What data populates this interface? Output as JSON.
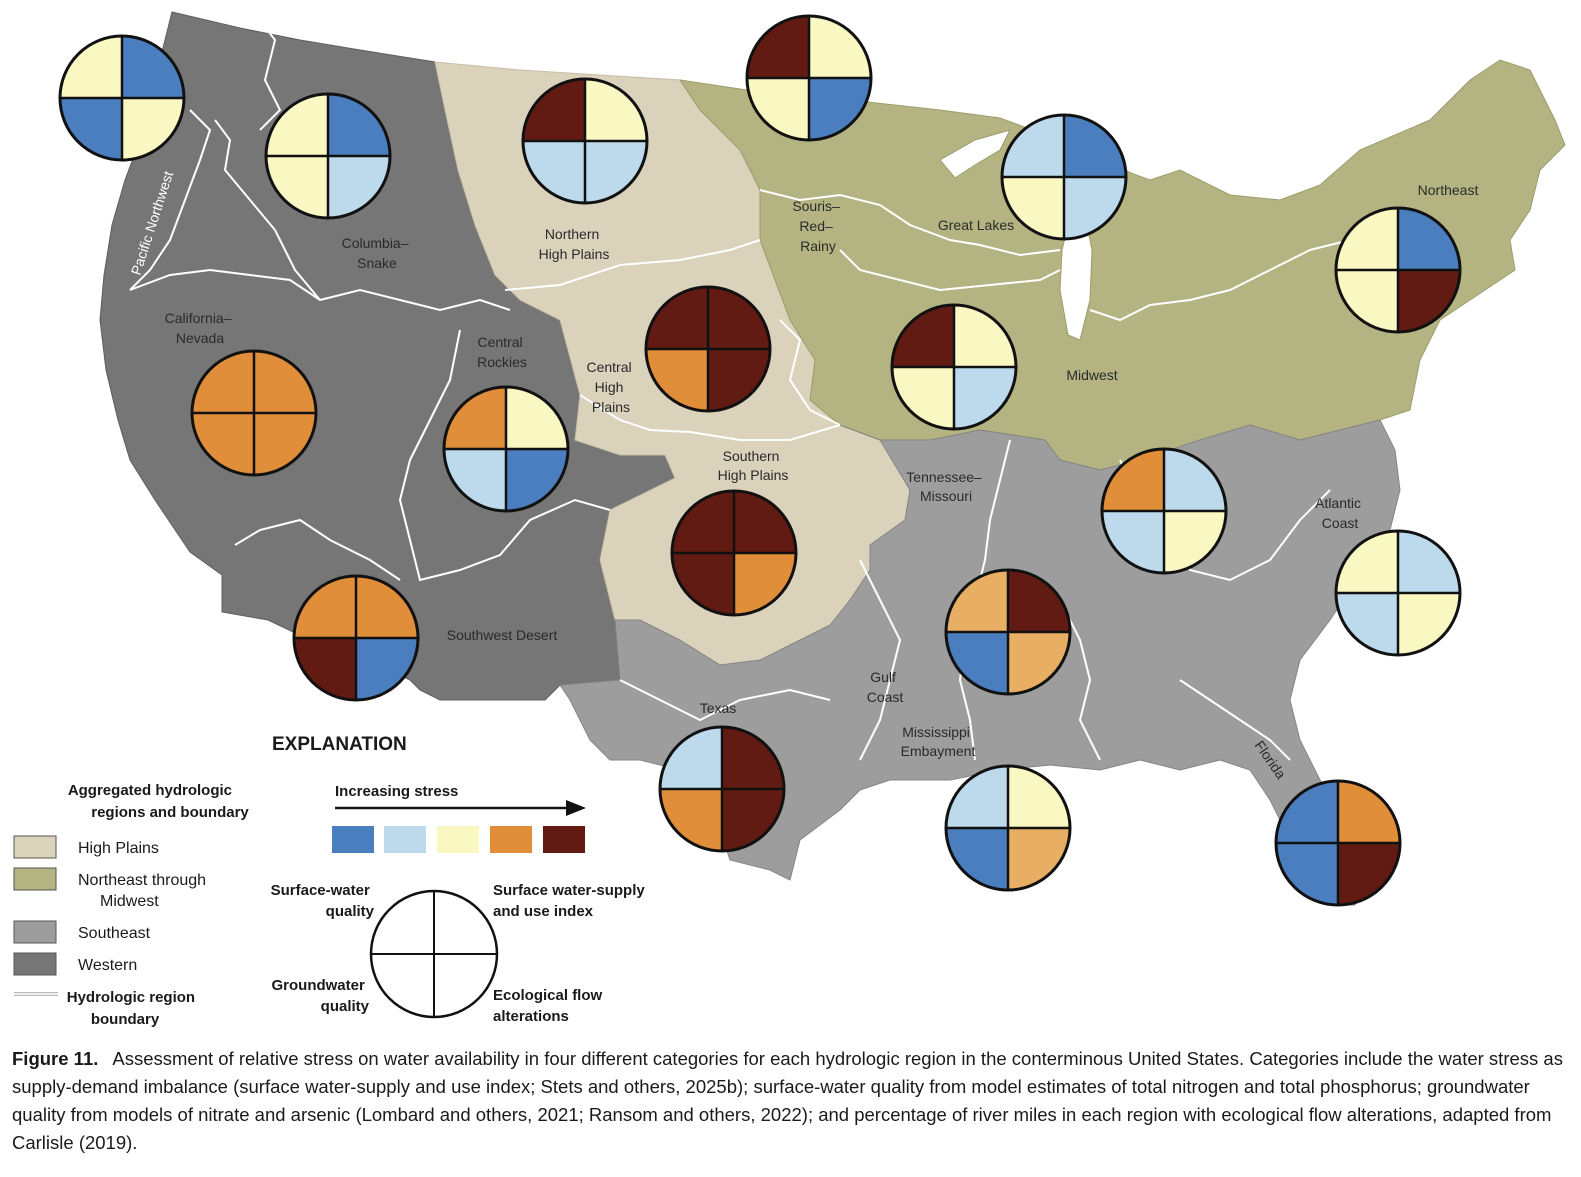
{
  "colors": {
    "stress_1": "#4a7ebe",
    "stress_2": "#bcdaec",
    "stress_3": "#f9f7c2",
    "stress_4": "#e08e3a",
    "stress_5": "#611b13",
    "stress_4_light": "#e8ae64",
    "high_plains": "#dbd2bc",
    "northeast_midwest": "#b3b482",
    "southeast": "#9d9d9d",
    "western": "#767676"
  },
  "region_labels": [
    {
      "id": "pacific-northwest",
      "text": "Pacific Northwest"
    },
    {
      "id": "columbia-snake",
      "lines": [
        "Columbia–",
        "Snake"
      ]
    },
    {
      "id": "california-nevada",
      "lines": [
        "California–",
        "Nevada"
      ]
    },
    {
      "id": "central-rockies",
      "lines": [
        "Central",
        "Rockies"
      ]
    },
    {
      "id": "southwest-desert",
      "lines": [
        "Southwest Desert"
      ]
    },
    {
      "id": "northern-high-plains",
      "lines": [
        "Northern",
        "High Plains"
      ]
    },
    {
      "id": "central-high-plains",
      "lines": [
        "Central",
        "High",
        "Plains"
      ]
    },
    {
      "id": "southern-high-plains",
      "lines": [
        "Southern",
        "High Plains"
      ]
    },
    {
      "id": "texas",
      "lines": [
        "Texas"
      ]
    },
    {
      "id": "souris-red-rainy",
      "lines": [
        "Souris–",
        "Red–",
        "Rainy"
      ]
    },
    {
      "id": "great-lakes",
      "lines": [
        "Great Lakes"
      ]
    },
    {
      "id": "midwest",
      "lines": [
        "Midwest"
      ]
    },
    {
      "id": "northeast",
      "lines": [
        "Northeast"
      ]
    },
    {
      "id": "tennessee-missouri",
      "lines": [
        "Tennessee–",
        "Missouri"
      ]
    },
    {
      "id": "gulf-coast",
      "lines": [
        "Gulf",
        "Coast"
      ]
    },
    {
      "id": "mississippi-embayment",
      "lines": [
        "Mississippi",
        "Embayment"
      ]
    },
    {
      "id": "atlantic-coast",
      "lines": [
        "Atlantic",
        "Coast"
      ]
    },
    {
      "id": "florida",
      "text": "Florida"
    }
  ],
  "pies": [
    {
      "region": "pacific-northwest",
      "tl": 3,
      "tr": 1,
      "bl": 1,
      "br": 3
    },
    {
      "region": "columbia-snake",
      "tl": 3,
      "tr": 1,
      "bl": 3,
      "br": 2
    },
    {
      "region": "california-nevada",
      "tl": 4,
      "tr": 4,
      "bl": 4,
      "br": 4
    },
    {
      "region": "central-rockies",
      "tl": 4,
      "tr": 3,
      "bl": 2,
      "br": 1
    },
    {
      "region": "southwest-desert",
      "tl": 4,
      "tr": 4,
      "bl": 5,
      "br": 1
    },
    {
      "region": "northern-high-plains",
      "tl": 5,
      "tr": 3,
      "bl": 2,
      "br": 2
    },
    {
      "region": "souris-red-rainy",
      "tl": 5,
      "tr": 3,
      "bl": 3,
      "br": 1
    },
    {
      "region": "central-high-plains",
      "tl": 5,
      "tr": 5,
      "bl": 4,
      "br": 5
    },
    {
      "region": "southern-high-plains",
      "tl": 5,
      "tr": 5,
      "bl": 5,
      "br": 4
    },
    {
      "region": "great-lakes",
      "tl": 2,
      "tr": 1,
      "bl": 3,
      "br": 2
    },
    {
      "region": "midwest",
      "tl": 5,
      "tr": 3,
      "bl": 3,
      "br": 2
    },
    {
      "region": "northeast",
      "tl": 3,
      "tr": 1,
      "bl": 3,
      "br": 5
    },
    {
      "region": "tennessee-missouri",
      "tl": 4,
      "tr": 2,
      "bl": 2,
      "br": 3
    },
    {
      "region": "gulf-coast",
      "tl": "4L",
      "tr": 5,
      "bl": 1,
      "br": "4L"
    },
    {
      "region": "atlantic-coast",
      "tl": 3,
      "tr": 2,
      "bl": 2,
      "br": 3
    },
    {
      "region": "texas",
      "tl": 2,
      "tr": 5,
      "bl": 4,
      "br": 5
    },
    {
      "region": "mississippi-embayment",
      "tl": 2,
      "tr": 3,
      "bl": 1,
      "br": "4L"
    },
    {
      "region": "florida",
      "tl": 1,
      "tr": 4,
      "bl": 1,
      "br": 5
    }
  ],
  "legend": {
    "title": "EXPLANATION",
    "regions_heading": [
      "Aggregated hydrologic",
      "regions and boundary"
    ],
    "regions": [
      {
        "label": [
          "High Plains"
        ],
        "color_key": "high_plains"
      },
      {
        "label": [
          "Northeast through",
          "Midwest"
        ],
        "color_key": "northeast_midwest"
      },
      {
        "label": [
          "Southeast"
        ],
        "color_key": "southeast"
      },
      {
        "label": [
          "Western"
        ],
        "color_key": "western"
      }
    ],
    "boundary_label": [
      "Hydrologic region",
      "boundary"
    ],
    "stress_heading": "Increasing stress",
    "quadrant_labels": {
      "tl": [
        "Surface-water",
        "quality"
      ],
      "tr": [
        "Surface water-supply",
        "and use index"
      ],
      "bl": [
        "Groundwater",
        "quality"
      ],
      "br": [
        "Ecological flow",
        "alterations"
      ]
    }
  },
  "caption": {
    "label": "Figure 11.",
    "text": "Assessment of relative stress on water availability in four different categories for each hydrologic region in the conterminous United States. Categories include the water stress as supply-demand imbalance (surface water-supply and use index; Stets and others, 2025b); surface-water quality from model estimates of total nitrogen and total phosphorus; groundwater quality from models of nitrate and arsenic (Lombard and others, 2021; Ransom and others, 2022); and percentage of river miles in each region with ecological flow alterations, adapted from Carlisle (2019)."
  }
}
